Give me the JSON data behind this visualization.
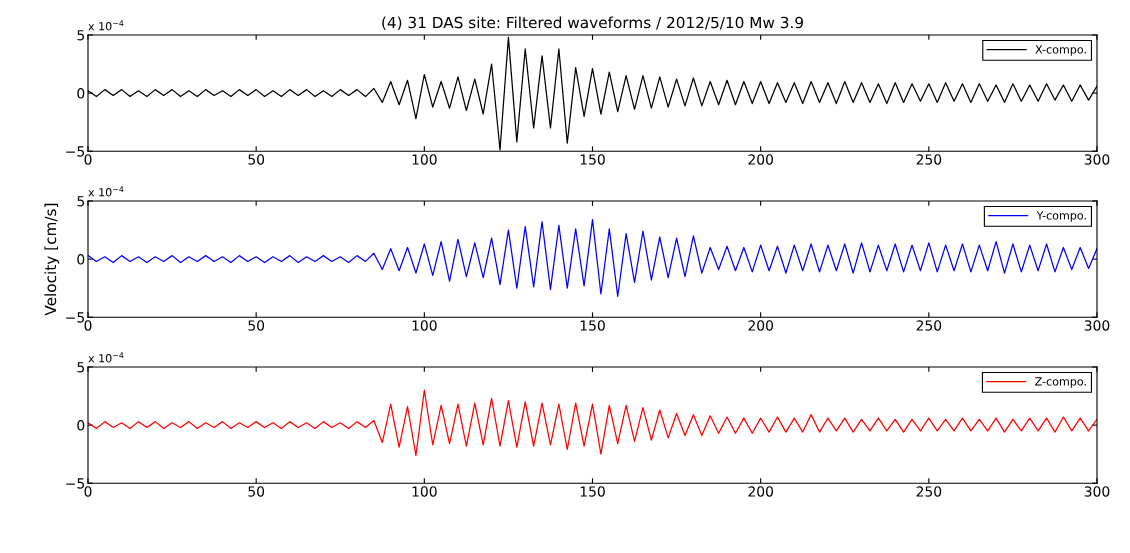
{
  "chart_data": [
    {
      "type": "line",
      "title": "(4) 31 DAS site: Filtered waveforms / 2012/5/10 Mw 3.9",
      "annotations": [
        "x 10$^{−4}$"
      ],
      "x": [
        0,
        2.5,
        5,
        7.5,
        10,
        12.5,
        15,
        17.5,
        20,
        22.5,
        25,
        27.5,
        30,
        32.5,
        35,
        37.5,
        40,
        42.5,
        45,
        47.5,
        50,
        52.5,
        55,
        57.5,
        60,
        62.5,
        65,
        67.5,
        70,
        72.5,
        75,
        77.5,
        80,
        82.5,
        85,
        87.5,
        90,
        92.5,
        95,
        97.5,
        100,
        102.5,
        105,
        107.5,
        110,
        112.5,
        115,
        117.5,
        120,
        122.5,
        125,
        127.5,
        130,
        132.5,
        135,
        137.5,
        140,
        142.5,
        145,
        147.5,
        150,
        152.5,
        155,
        157.5,
        160,
        162.5,
        165,
        167.5,
        170,
        172.5,
        175,
        177.5,
        180,
        182.5,
        185,
        187.5,
        190,
        192.5,
        195,
        197.5,
        200,
        202.5,
        205,
        207.5,
        210,
        212.5,
        215,
        217.5,
        220,
        222.5,
        225,
        227.5,
        230,
        232.5,
        235,
        237.5,
        240,
        242.5,
        245,
        247.5,
        250,
        252.5,
        255,
        257.5,
        260,
        262.5,
        265,
        267.5,
        270,
        272.5,
        275,
        277.5,
        280,
        282.5,
        285,
        287.5,
        290,
        292.5,
        295,
        297.5,
        300
      ],
      "series": [
        {
          "name": "X-compo.",
          "color": "#000000",
          "values": [
            0.2,
            -0.3,
            0.3,
            -0.2,
            0.3,
            -0.3,
            0.2,
            -0.3,
            0.3,
            -0.2,
            0.3,
            -0.3,
            0.2,
            -0.3,
            0.3,
            -0.2,
            0.2,
            -0.3,
            0.3,
            -0.2,
            0.3,
            -0.3,
            0.2,
            -0.3,
            0.3,
            -0.2,
            0.3,
            -0.3,
            0.2,
            -0.3,
            0.3,
            -0.2,
            0.3,
            -0.3,
            0.4,
            -0.8,
            1.0,
            -1.0,
            1.1,
            -2.2,
            1.6,
            -1.2,
            1.0,
            -1.3,
            1.4,
            -1.5,
            1.2,
            -1.8,
            2.5,
            -4.9,
            4.8,
            -4.2,
            3.8,
            -3.0,
            3.2,
            -3.0,
            3.8,
            -4.3,
            2.2,
            -2.0,
            2.1,
            -1.8,
            1.8,
            -1.6,
            1.5,
            -1.4,
            1.5,
            -1.3,
            1.4,
            -1.2,
            1.2,
            -1.1,
            1.3,
            -1.1,
            1.0,
            -1.0,
            1.1,
            -1.0,
            1.0,
            -0.9,
            1.0,
            -0.9,
            0.9,
            -0.8,
            0.9,
            -0.9,
            1.0,
            -0.8,
            0.9,
            -0.9,
            1.0,
            -0.8,
            0.9,
            -0.8,
            0.8,
            -0.9,
            0.9,
            -0.8,
            0.8,
            -0.7,
            0.8,
            -0.8,
            0.9,
            -0.7,
            0.8,
            -0.8,
            0.8,
            -0.7,
            0.7,
            -0.8,
            0.8,
            -0.7,
            0.7,
            -0.7,
            0.8,
            -0.6,
            0.7,
            -0.7,
            0.7,
            -0.6,
            0.6
          ]
        }
      ],
      "xlim": [
        0,
        300
      ],
      "xticks": [
        0,
        50,
        100,
        150,
        200,
        250,
        300
      ],
      "ylim": [
        -5,
        5
      ],
      "yticks": [
        -5,
        0,
        5
      ],
      "legend": "top right",
      "grid": false,
      "marker": "none",
      "line_style": "solid"
    },
    {
      "type": "line",
      "ylabel": "Velocity [cm/s]",
      "annotations": [
        "x 10$^{−4}$"
      ],
      "x": [
        0,
        2.5,
        5,
        7.5,
        10,
        12.5,
        15,
        17.5,
        20,
        22.5,
        25,
        27.5,
        30,
        32.5,
        35,
        37.5,
        40,
        42.5,
        45,
        47.5,
        50,
        52.5,
        55,
        57.5,
        60,
        62.5,
        65,
        67.5,
        70,
        72.5,
        75,
        77.5,
        80,
        82.5,
        85,
        87.5,
        90,
        92.5,
        95,
        97.5,
        100,
        102.5,
        105,
        107.5,
        110,
        112.5,
        115,
        117.5,
        120,
        122.5,
        125,
        127.5,
        130,
        132.5,
        135,
        137.5,
        140,
        142.5,
        145,
        147.5,
        150,
        152.5,
        155,
        157.5,
        160,
        162.5,
        165,
        167.5,
        170,
        172.5,
        175,
        177.5,
        180,
        182.5,
        185,
        187.5,
        190,
        192.5,
        195,
        197.5,
        200,
        202.5,
        205,
        207.5,
        210,
        212.5,
        215,
        217.5,
        220,
        222.5,
        225,
        227.5,
        230,
        232.5,
        235,
        237.5,
        240,
        242.5,
        245,
        247.5,
        250,
        252.5,
        255,
        257.5,
        260,
        262.5,
        265,
        267.5,
        270,
        272.5,
        275,
        277.5,
        280,
        282.5,
        285,
        287.5,
        290,
        292.5,
        295,
        297.5,
        300
      ],
      "series": [
        {
          "name": "Y-compo.",
          "color": "#0000ff",
          "values": [
            0.3,
            -0.2,
            0.2,
            -0.3,
            0.3,
            -0.2,
            0.2,
            -0.3,
            0.2,
            -0.2,
            0.3,
            -0.3,
            0.2,
            -0.2,
            0.3,
            -0.2,
            0.2,
            -0.3,
            0.3,
            -0.2,
            0.2,
            -0.3,
            0.2,
            -0.2,
            0.3,
            -0.3,
            0.2,
            -0.2,
            0.3,
            -0.2,
            0.2,
            -0.3,
            0.3,
            -0.2,
            0.5,
            -0.9,
            0.9,
            -1.0,
            1.0,
            -1.2,
            1.3,
            -1.4,
            1.5,
            -1.9,
            1.7,
            -1.5,
            1.4,
            -1.6,
            1.8,
            -2.2,
            2.5,
            -2.5,
            2.8,
            -2.4,
            3.2,
            -2.6,
            2.9,
            -2.5,
            2.6,
            -2.3,
            3.4,
            -3.0,
            2.6,
            -3.2,
            2.2,
            -2.0,
            2.4,
            -1.8,
            1.9,
            -1.6,
            1.8,
            -1.5,
            2.0,
            -1.2,
            1.0,
            -0.9,
            1.1,
            -1.0,
            1.0,
            -1.1,
            1.2,
            -1.0,
            1.1,
            -1.2,
            1.2,
            -1.0,
            1.3,
            -1.1,
            1.2,
            -1.0,
            1.3,
            -1.2,
            1.4,
            -1.1,
            1.2,
            -1.0,
            1.3,
            -1.1,
            1.2,
            -1.0,
            1.4,
            -1.1,
            1.2,
            -1.0,
            1.3,
            -1.1,
            1.2,
            -1.0,
            1.5,
            -1.2,
            1.3,
            -1.1,
            1.2,
            -1.0,
            1.3,
            -1.1,
            1.0,
            -0.9,
            1.0,
            -0.8,
            0.9
          ]
        }
      ],
      "xlim": [
        0,
        300
      ],
      "xticks": [
        0,
        50,
        100,
        150,
        200,
        250,
        300
      ],
      "ylim": [
        -5,
        5
      ],
      "yticks": [
        -5,
        0,
        5
      ],
      "legend": "top right",
      "grid": false,
      "marker": "none",
      "line_style": "solid"
    },
    {
      "type": "line",
      "annotations": [
        "x 10$^{−4}$"
      ],
      "x": [
        0,
        2.5,
        5,
        7.5,
        10,
        12.5,
        15,
        17.5,
        20,
        22.5,
        25,
        27.5,
        30,
        32.5,
        35,
        37.5,
        40,
        42.5,
        45,
        47.5,
        50,
        52.5,
        55,
        57.5,
        60,
        62.5,
        65,
        67.5,
        70,
        72.5,
        75,
        77.5,
        80,
        82.5,
        85,
        87.5,
        90,
        92.5,
        95,
        97.5,
        100,
        102.5,
        105,
        107.5,
        110,
        112.5,
        115,
        117.5,
        120,
        122.5,
        125,
        127.5,
        130,
        132.5,
        135,
        137.5,
        140,
        142.5,
        145,
        147.5,
        150,
        152.5,
        155,
        157.5,
        160,
        162.5,
        165,
        167.5,
        170,
        172.5,
        175,
        177.5,
        180,
        182.5,
        185,
        187.5,
        190,
        192.5,
        195,
        197.5,
        200,
        202.5,
        205,
        207.5,
        210,
        212.5,
        215,
        217.5,
        220,
        222.5,
        225,
        227.5,
        230,
        232.5,
        235,
        237.5,
        240,
        242.5,
        245,
        247.5,
        250,
        252.5,
        255,
        257.5,
        260,
        262.5,
        265,
        267.5,
        270,
        272.5,
        275,
        277.5,
        280,
        282.5,
        285,
        287.5,
        290,
        292.5,
        295,
        297.5,
        300
      ],
      "series": [
        {
          "name": "Z-compo.",
          "color": "#ff0000",
          "values": [
            0.2,
            -0.3,
            0.3,
            -0.2,
            0.2,
            -0.3,
            0.3,
            -0.2,
            0.3,
            -0.3,
            0.2,
            -0.2,
            0.3,
            -0.3,
            0.2,
            -0.2,
            0.3,
            -0.3,
            0.2,
            -0.2,
            0.3,
            -0.2,
            0.2,
            -0.3,
            0.3,
            -0.2,
            0.2,
            -0.3,
            0.3,
            -0.2,
            0.2,
            -0.3,
            0.3,
            -0.2,
            0.4,
            -1.5,
            1.8,
            -1.9,
            1.6,
            -2.6,
            3.0,
            -1.7,
            1.7,
            -1.6,
            1.8,
            -1.8,
            1.9,
            -1.7,
            2.3,
            -1.8,
            2.1,
            -1.9,
            2.0,
            -1.8,
            1.9,
            -1.7,
            1.8,
            -2.1,
            1.9,
            -1.8,
            1.8,
            -2.5,
            1.7,
            -1.6,
            1.7,
            -1.4,
            1.5,
            -1.3,
            1.3,
            -1.1,
            1.0,
            -0.9,
            0.9,
            -0.9,
            0.8,
            -0.7,
            0.7,
            -0.7,
            0.6,
            -0.7,
            0.6,
            -0.6,
            0.7,
            -0.6,
            0.6,
            -0.6,
            0.9,
            -0.6,
            0.6,
            -0.5,
            0.6,
            -0.6,
            0.5,
            -0.5,
            0.6,
            -0.5,
            0.5,
            -0.6,
            0.5,
            -0.5,
            0.6,
            -0.5,
            0.5,
            -0.5,
            0.6,
            -0.5,
            0.5,
            -0.5,
            0.6,
            -0.6,
            0.5,
            -0.5,
            0.6,
            -0.5,
            0.6,
            -0.6,
            0.7,
            -0.5,
            0.6,
            -0.5,
            0.5
          ]
        }
      ],
      "xlim": [
        0,
        300
      ],
      "xticks": [
        0,
        50,
        100,
        150,
        200,
        250,
        300
      ],
      "ylim": [
        -5,
        5
      ],
      "yticks": [
        -5,
        0,
        5
      ],
      "legend": "top right",
      "grid": false,
      "marker": "none",
      "line_style": "solid"
    }
  ]
}
